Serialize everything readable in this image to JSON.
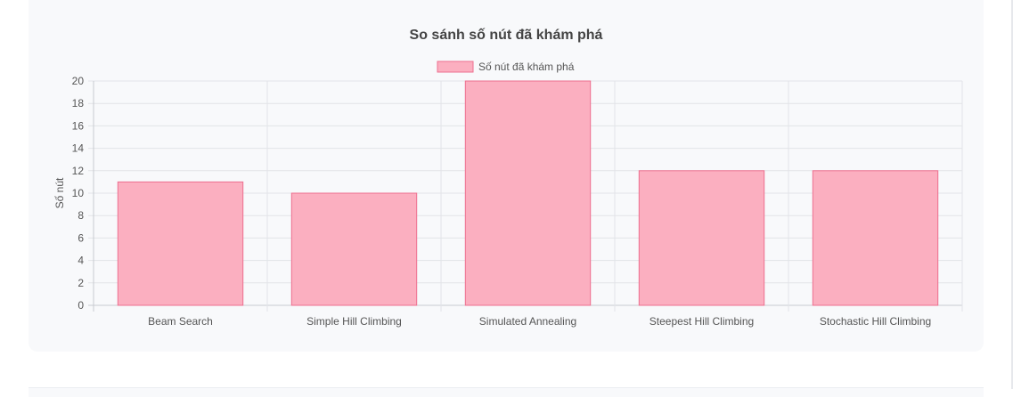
{
  "chart_data": {
    "type": "bar",
    "title": "So sánh số nút đã khám phá",
    "xlabel": "",
    "ylabel": "Số nút",
    "ylim": [
      0,
      20
    ],
    "yticks": [
      0,
      2,
      4,
      6,
      8,
      10,
      12,
      14,
      16,
      18,
      20
    ],
    "categories": [
      "Beam Search",
      "Simple Hill Climbing",
      "Simulated Annealing",
      "Steepest Hill Climbing",
      "Stochastic Hill Climbing"
    ],
    "series": [
      {
        "name": "Số nút đã khám phá",
        "values": [
          11,
          10,
          20,
          12,
          12
        ]
      }
    ],
    "legend_position": "top",
    "grid": true,
    "colors": {
      "bar_fill": "#fbafc0",
      "bar_stroke": "#ee6f8f",
      "grid": "#e2e4e8",
      "axis": "#c8cbd0"
    }
  }
}
